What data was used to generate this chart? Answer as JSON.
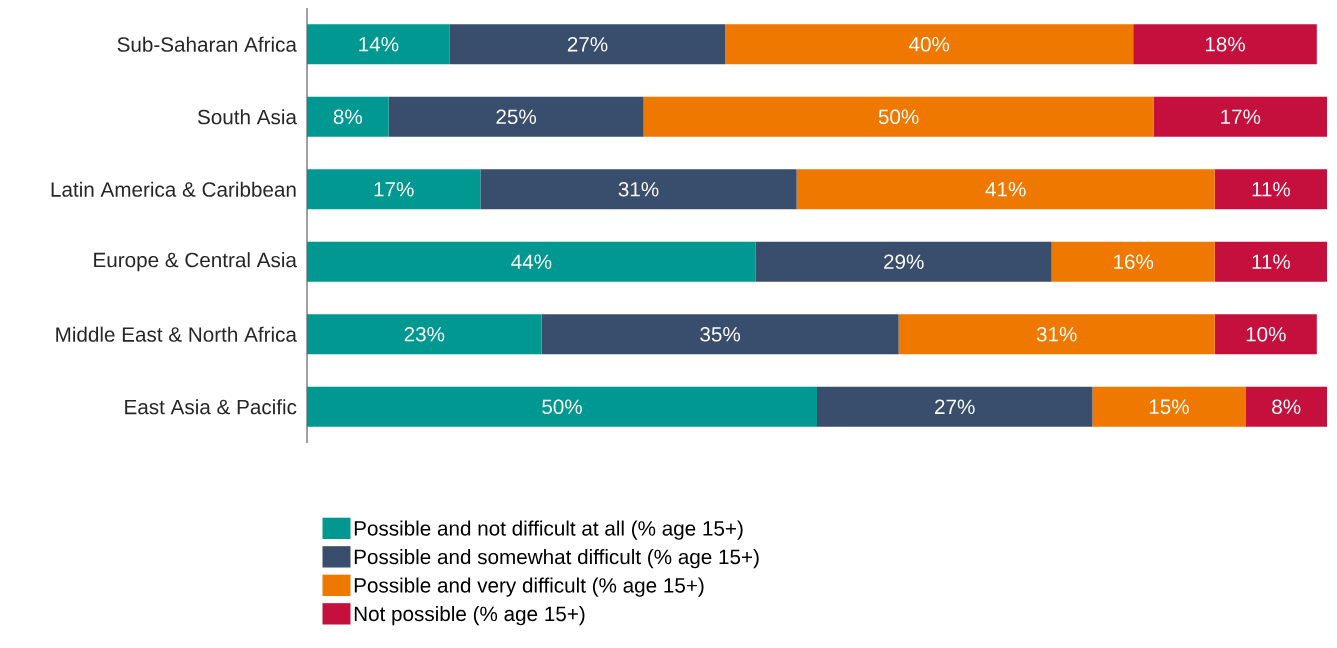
{
  "chart_data": {
    "type": "bar",
    "orientation": "horizontal",
    "stacked": true,
    "categories": [
      "Sub-Saharan Africa",
      "South Asia",
      "Latin America & Caribbean",
      "Europe & Central Asia",
      "Middle East & North Africa",
      "East Asia & Pacific"
    ],
    "series": [
      {
        "name": "Possible and not difficult at all (% age 15+)",
        "color": "#009890",
        "values": [
          14,
          8,
          17,
          44,
          23,
          50
        ],
        "value_labels": [
          "14%",
          "8%",
          "17%",
          "44%",
          "23%",
          "50%"
        ]
      },
      {
        "name": "Possible and somewhat difficult (% age 15+)",
        "color": "#394d6c",
        "values": [
          27,
          25,
          31,
          29,
          35,
          27
        ],
        "value_labels": [
          "27%",
          "25%",
          "31%",
          "29%",
          "35%",
          "27%"
        ]
      },
      {
        "name": "Possible and very difficult (% age 15+)",
        "color": "#ef7800",
        "values": [
          40,
          50,
          41,
          16,
          31,
          15
        ],
        "value_labels": [
          "40%",
          "50%",
          "41%",
          "16%",
          "31%",
          "15%"
        ]
      },
      {
        "name": "Not possible (% age 15+)",
        "color": "#c50f3c",
        "values": [
          18,
          17,
          11,
          11,
          10,
          8
        ],
        "value_labels": [
          "18%",
          "17%",
          "11%",
          "11%",
          "10%",
          "8%"
        ]
      }
    ],
    "xlim": [
      0,
      100
    ],
    "tick_labels": "y",
    "legend": "bottom",
    "grid": false
  }
}
